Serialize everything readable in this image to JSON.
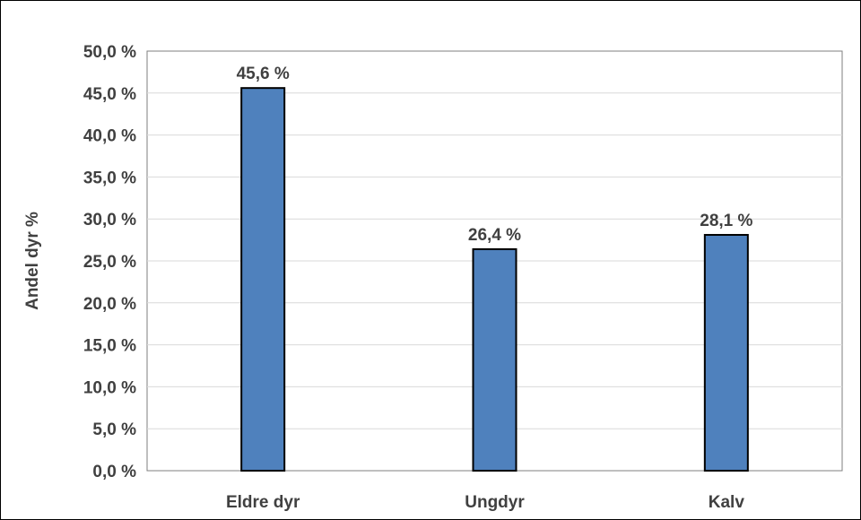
{
  "chart_data": {
    "type": "bar",
    "title": "",
    "xlabel": "",
    "ylabel": "Andel dyr %",
    "categories": [
      "Eldre dyr",
      "Ungdyr",
      "Kalv"
    ],
    "values": [
      45.6,
      26.4,
      28.1
    ],
    "data_labels": [
      "45,6 %",
      "26,4 %",
      "28,1 %"
    ],
    "ylim": [
      0,
      50
    ],
    "yticks": [
      0,
      5,
      10,
      15,
      20,
      25,
      30,
      35,
      40,
      45,
      50
    ],
    "ytick_labels": [
      "0,0 %",
      "5,0 %",
      "10,0 %",
      "15,0 %",
      "20,0 %",
      "25,0 %",
      "30,0 %",
      "35,0 %",
      "40,0 %",
      "45,0 %",
      "50,0 %"
    ],
    "grid": true,
    "legend": "none",
    "bar_color": "#4f81bd",
    "bar_border_color": "#000000",
    "grid_color": "#d9d9d9"
  }
}
